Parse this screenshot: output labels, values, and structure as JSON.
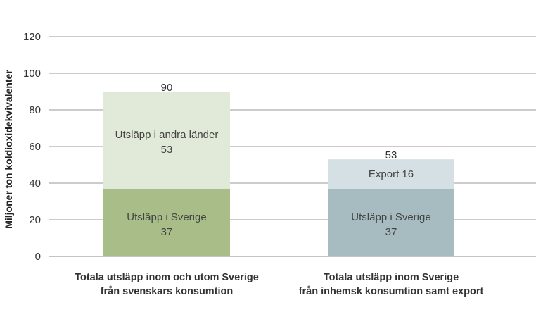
{
  "chart_data": {
    "type": "bar",
    "stacked": true,
    "ylabel": "Miljoner ton koldioxidekvivalenter",
    "xlabel": "",
    "ylim": [
      0,
      120
    ],
    "yticks": [
      0,
      20,
      40,
      60,
      80,
      100,
      120
    ],
    "grid": true,
    "categories": [
      [
        "Totala utsläpp inom och utom Sverige",
        "från svenskars konsumtion"
      ],
      [
        "Totala utsläpp inom Sverige",
        "från inhemsk konsumtion samt export"
      ]
    ],
    "bars": [
      {
        "total": 90,
        "segments": [
          {
            "label": "Utsläpp i Sverige",
            "value": 37,
            "value_text": "37",
            "color": "#a8bd88"
          },
          {
            "label": "Utsläpp i andra länder",
            "value": 53,
            "value_text": "53",
            "color": "#e1e9d8"
          }
        ]
      },
      {
        "total": 53,
        "segments": [
          {
            "label": "Utsläpp i Sverige",
            "value": 37,
            "value_text": "37",
            "color": "#a6bcc0"
          },
          {
            "label": "Export 16",
            "value": 16,
            "value_text": "",
            "color": "#d4e0e3"
          }
        ]
      }
    ]
  }
}
